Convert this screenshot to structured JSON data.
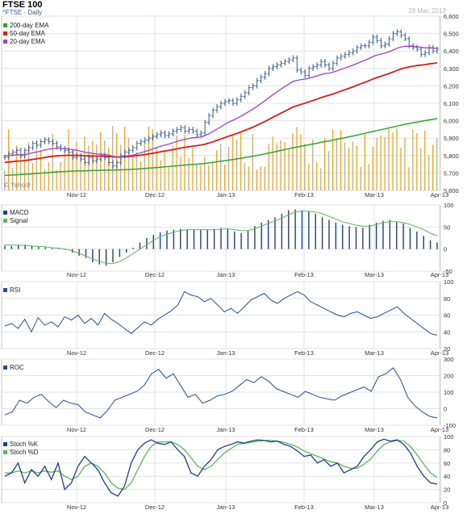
{
  "header": {
    "title": "FTSE 100",
    "symbol": "^FTSE · Daily",
    "date": "28 Mar, 2013",
    "source": "© Yahoo!"
  },
  "x_axis_labels": [
    "Nov-12",
    "Dec-12",
    "Jan-13",
    "Feb-13",
    "Mar-13",
    "Apr-13"
  ],
  "colors": {
    "frame": "#c8c8c8",
    "grid": "#e3e3e3",
    "price_bars": "#2d5aa7",
    "volume": "#f5a623",
    "ema200": "#2ea52e",
    "ema50": "#d31f1f",
    "ema20": "#a040c8",
    "macd": "#1f3f8a",
    "signal": "#5cb85c",
    "rsi": "#1f4f9a",
    "roc": "#1f4f9a",
    "stoch_k": "#1f3f8a",
    "stoch_d": "#5cb85c"
  },
  "chart_data": [
    {
      "type": "ohlc",
      "panel": "price",
      "title": "FTSE 100",
      "ylim": [
        5600,
        6600
      ],
      "ytick_labels": [
        "6,600",
        "6,500",
        "6,400",
        "6,300",
        "6,200",
        "6,100",
        "6,000",
        "5,900",
        "5,800",
        "5,700",
        "5,600"
      ],
      "legend": [
        "200-day EMA",
        "50-day EMA",
        "20-day EMA"
      ],
      "close": [
        5790,
        5810,
        5820,
        5830,
        5800,
        5830,
        5845,
        5870,
        5860,
        5880,
        5890,
        5880,
        5870,
        5850,
        5840,
        5830,
        5820,
        5790,
        5800,
        5780,
        5760,
        5790,
        5770,
        5780,
        5800,
        5790,
        5760,
        5740,
        5760,
        5800,
        5820,
        5830,
        5845,
        5870,
        5880,
        5890,
        5900,
        5910,
        5920,
        5930,
        5915,
        5925,
        5940,
        5950,
        5960,
        5940,
        5950,
        5940,
        5920,
        5930,
        5990,
        6030,
        6060,
        6080,
        6100,
        6110,
        6115,
        6100,
        6120,
        6140,
        6160,
        6190,
        6200,
        6230,
        6250,
        6270,
        6300,
        6310,
        6320,
        6330,
        6340,
        6350,
        6360,
        6290,
        6280,
        6260,
        6300,
        6310,
        6320,
        6340,
        6320,
        6300,
        6330,
        6360,
        6370,
        6380,
        6390,
        6400,
        6420,
        6430,
        6430,
        6450,
        6480,
        6460,
        6430,
        6440,
        6470,
        6500,
        6510,
        6490,
        6470,
        6430,
        6420,
        6410,
        6380,
        6390,
        6420,
        6400,
        6411
      ],
      "series": [
        {
          "name": "200-day EMA",
          "values": [
            5685,
            6020
          ]
        },
        {
          "name": "50-day EMA",
          "values": [
            5760,
            6330
          ]
        },
        {
          "name": "20-day EMA",
          "values": [
            5780,
            6410
          ]
        }
      ],
      "volume_ylim": [
        0,
        7
      ]
    },
    {
      "type": "line+bar",
      "panel": "macd",
      "ylim": [
        -50,
        100
      ],
      "ytick_labels": [
        "100",
        "50",
        "0",
        "-50"
      ],
      "series": [
        {
          "name": "MACD",
          "values": [
            8,
            7,
            9,
            10,
            8,
            6,
            5,
            3,
            1,
            -2,
            -8,
            -15,
            -20,
            -30,
            -35,
            -38,
            -30,
            -18,
            -8,
            3,
            15,
            25,
            32,
            38,
            42,
            44,
            46,
            45,
            45,
            44,
            44,
            46,
            48,
            47,
            40,
            36,
            42,
            52,
            60,
            66,
            72,
            80,
            88,
            90,
            88,
            85,
            80,
            72,
            66,
            60,
            55,
            52,
            50,
            48,
            55,
            60,
            64,
            66,
            62,
            58,
            48,
            40,
            30,
            20,
            15
          ]
        },
        {
          "name": "Signal",
          "values": [
            10,
            9,
            9,
            8,
            7,
            6,
            5,
            3,
            2,
            0,
            -4,
            -10,
            -16,
            -22,
            -28,
            -32,
            -33,
            -28,
            -20,
            -10,
            0,
            10,
            20,
            28,
            34,
            38,
            42,
            44,
            44,
            44,
            44,
            44,
            45,
            46,
            44,
            42,
            42,
            46,
            52,
            58,
            64,
            70,
            78,
            84,
            86,
            86,
            84,
            80,
            74,
            68,
            62,
            58,
            54,
            52,
            52,
            56,
            60,
            62,
            62,
            60,
            56,
            50,
            44,
            36,
            30
          ]
        }
      ]
    },
    {
      "type": "line",
      "panel": "rsi",
      "ylim": [
        20,
        100
      ],
      "ytick_labels": [
        "100",
        "80",
        "60",
        "40",
        "20"
      ],
      "series": [
        {
          "name": "RSI",
          "values": [
            47,
            50,
            44,
            55,
            40,
            57,
            48,
            52,
            46,
            58,
            54,
            60,
            50,
            56,
            48,
            62,
            55,
            50,
            44,
            38,
            45,
            52,
            48,
            55,
            60,
            65,
            72,
            88,
            84,
            82,
            76,
            80,
            72,
            64,
            68,
            62,
            70,
            78,
            82,
            86,
            78,
            74,
            80,
            84,
            88,
            84,
            76,
            72,
            68,
            64,
            60,
            58,
            62,
            64,
            60,
            56,
            58,
            62,
            66,
            70,
            62,
            56,
            50,
            44,
            38,
            36
          ]
        }
      ]
    },
    {
      "type": "line",
      "panel": "roc",
      "ylim": [
        -150,
        300
      ],
      "ytick_labels": [
        "300",
        "200",
        "100",
        "0",
        "-100"
      ],
      "series": [
        {
          "name": "ROC",
          "values": [
            -80,
            -60,
            20,
            0,
            40,
            60,
            10,
            -30,
            20,
            0,
            -10,
            -60,
            -80,
            -100,
            -50,
            20,
            40,
            60,
            80,
            120,
            200,
            230,
            170,
            200,
            120,
            40,
            60,
            0,
            20,
            50,
            60,
            80,
            120,
            160,
            140,
            180,
            150,
            100,
            80,
            60,
            40,
            80,
            60,
            40,
            30,
            20,
            50,
            70,
            90,
            110,
            80,
            180,
            200,
            240,
            160,
            40,
            -20,
            -60,
            -90,
            -100
          ]
        }
      ]
    },
    {
      "type": "line",
      "panel": "stoch",
      "ylim": [
        0,
        100
      ],
      "ytick_labels": [
        "100",
        "80",
        "60",
        "40",
        "20",
        "0"
      ],
      "series": [
        {
          "name": "Stoch %K",
          "values": [
            40,
            45,
            60,
            30,
            50,
            40,
            55,
            35,
            60,
            20,
            30,
            55,
            70,
            60,
            50,
            30,
            15,
            10,
            25,
            60,
            80,
            90,
            95,
            90,
            88,
            92,
            80,
            70,
            45,
            40,
            55,
            65,
            80,
            85,
            88,
            92,
            90,
            93,
            95,
            94,
            92,
            93,
            88,
            85,
            78,
            70,
            72,
            60,
            65,
            55,
            60,
            45,
            50,
            55,
            70,
            80,
            92,
            96,
            93,
            95,
            88,
            75,
            55,
            40,
            30,
            28
          ]
        },
        {
          "name": "Stoch %D",
          "values": [
            45,
            45,
            48,
            45,
            48,
            45,
            48,
            46,
            48,
            40,
            35,
            40,
            55,
            60,
            55,
            45,
            30,
            22,
            20,
            30,
            50,
            70,
            85,
            92,
            92,
            92,
            88,
            80,
            68,
            55,
            50,
            55,
            65,
            75,
            82,
            88,
            90,
            91,
            93,
            94,
            94,
            93,
            91,
            88,
            84,
            78,
            74,
            70,
            66,
            62,
            60,
            55,
            52,
            52,
            58,
            66,
            78,
            88,
            92,
            94,
            93,
            85,
            72,
            58,
            45,
            38
          ]
        }
      ]
    }
  ]
}
